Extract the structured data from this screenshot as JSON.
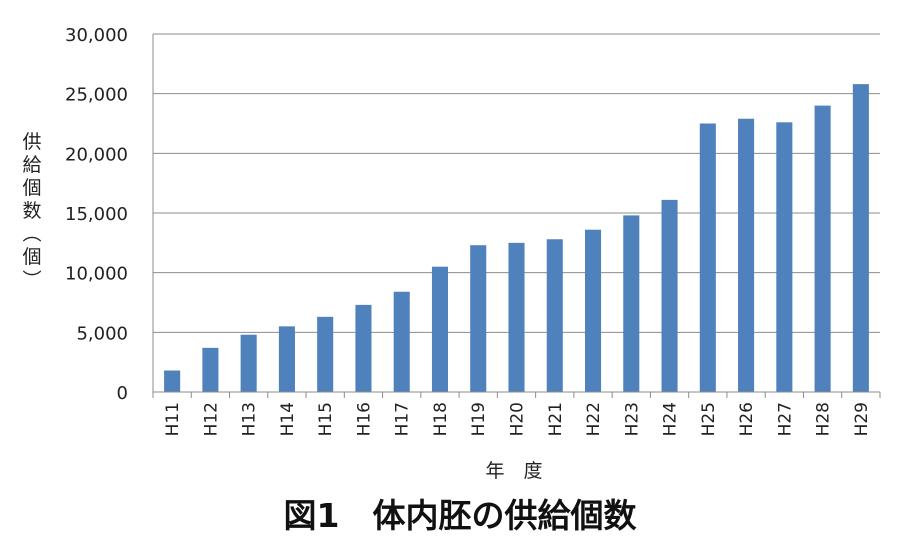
{
  "chart_data": {
    "type": "bar",
    "title": "図1　体内胚の供給個数",
    "xlabel": "年　度",
    "ylabel": "（個）供給個数",
    "ylabel_chars": [
      "供",
      "給",
      "個",
      "数",
      "（",
      "個",
      "）"
    ],
    "ylim": [
      0,
      30000
    ],
    "yticks": [
      0,
      5000,
      10000,
      15000,
      20000,
      25000,
      30000
    ],
    "ytick_labels": [
      "0",
      "5,000",
      "10,000",
      "15,000",
      "20,000",
      "25,000",
      "30,000"
    ],
    "grid": true,
    "legend": "none",
    "bar_color": "#4f81bd",
    "categories": [
      "H11",
      "H12",
      "H13",
      "H14",
      "H15",
      "H16",
      "H17",
      "H18",
      "H19",
      "H20",
      "H21",
      "H22",
      "H23",
      "H24",
      "H25",
      "H26",
      "H27",
      "H28",
      "H29"
    ],
    "values": [
      1800,
      3700,
      4800,
      5500,
      6300,
      7300,
      8400,
      10500,
      12300,
      12500,
      12800,
      13600,
      14800,
      16100,
      22500,
      22900,
      22600,
      24000,
      25800
    ]
  }
}
